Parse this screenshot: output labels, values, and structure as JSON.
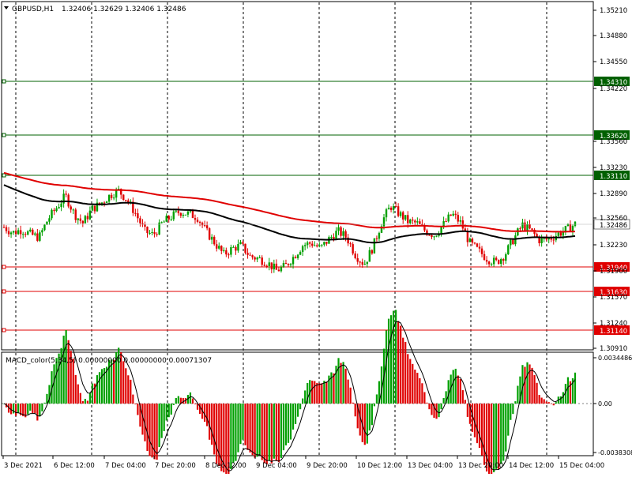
{
  "header": {
    "symbol": "GBPUSD,H1",
    "ohlc": "1.32406 1.32629 1.32406 1.32486"
  },
  "macd_header": "MACD_color(5,34,5) 0.00000000 0.00000000 0.00071307",
  "colors": {
    "bull": "#00a000",
    "bear": "#e00000",
    "ma_red": "#e00000",
    "ma_black": "#000000",
    "support_line": "#e00000",
    "resistance_line": "#006000",
    "grid": "#000000"
  },
  "price_axis": {
    "ticks": [
      "1.35210",
      "1.34880",
      "1.34550",
      "1.34220",
      "1.33560",
      "1.33230",
      "1.32890",
      "1.32560",
      "1.32230",
      "1.31900",
      "1.31570",
      "1.31240",
      "1.30910"
    ]
  },
  "current_price": "1.32486",
  "levels": [
    {
      "label": "1.34310",
      "value": 1.3431,
      "type": "resistance"
    },
    {
      "label": "1.33620",
      "value": 1.3362,
      "type": "resistance"
    },
    {
      "label": "1.33110",
      "value": 1.3311,
      "type": "resistance"
    },
    {
      "label": "1.31940",
      "value": 1.3194,
      "type": "support"
    },
    {
      "label": "1.31630",
      "value": 1.3163,
      "type": "support"
    },
    {
      "label": "1.31140",
      "value": 1.3114,
      "type": "support"
    }
  ],
  "macd_axis": {
    "ticks": [
      "0.0034486",
      "0.00",
      "-0.0038308"
    ]
  },
  "time_axis": {
    "labels": [
      "3 Dec 2021",
      "6 Dec 12:00",
      "7 Dec 04:00",
      "7 Dec 20:00",
      "8 Dec 12:00",
      "9 Dec 04:00",
      "9 Dec 20:00",
      "10 Dec 12:00",
      "13 Dec 04:00",
      "13 Dec 20:00",
      "14 Dec 12:00",
      "15 Dec 04:00"
    ]
  },
  "chart_data": {
    "type": "candlestick",
    "symbol": "GBPUSD",
    "timeframe": "H1",
    "ylim": [
      1.3091,
      1.3521
    ],
    "close_path": [
      1.3245,
      1.3238,
      1.3242,
      1.3236,
      1.3232,
      1.3255,
      1.327,
      1.3285,
      1.3262,
      1.325,
      1.3268,
      1.3275,
      1.3285,
      1.3292,
      1.328,
      1.3262,
      1.324,
      1.3235,
      1.325,
      1.3258,
      1.3265,
      1.3262,
      1.3258,
      1.324,
      1.3225,
      1.321,
      1.3218,
      1.3222,
      1.3208,
      1.3205,
      1.32,
      1.319,
      1.3195,
      1.3208,
      1.3222,
      1.3225,
      1.3218,
      1.323,
      1.324,
      1.3232,
      1.321,
      1.3198,
      1.322,
      1.3252,
      1.3272,
      1.3262,
      1.3252,
      1.325,
      1.324,
      1.3235,
      1.3248,
      1.3262,
      1.325,
      1.3225,
      1.3215,
      1.3205,
      1.32,
      1.321,
      1.323,
      1.3248,
      1.324,
      1.3228,
      1.323,
      1.3236,
      1.3242,
      1.3249
    ]
  }
}
